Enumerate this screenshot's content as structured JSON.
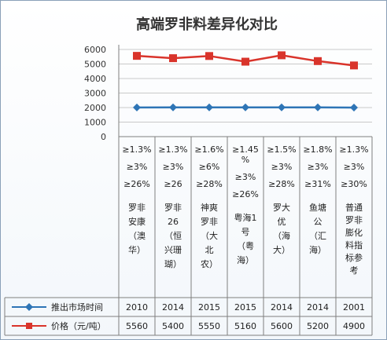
{
  "chart_data": {
    "type": "line",
    "title": "高端罗非料差异化对比",
    "ylim": [
      0,
      6000
    ],
    "yticks": [
      0,
      1000,
      2000,
      3000,
      4000,
      5000,
      6000
    ],
    "grid": true,
    "categories": [
      [
        "≥1.3%",
        "≥3%",
        "≥26%",
        "罗非",
        "安康",
        "（澳",
        "华）"
      ],
      [
        "≥1.3%",
        "≥3%",
        "≥26",
        "罗非",
        "26",
        "（恒",
        "兴珊",
        "瑚）"
      ],
      [
        "≥1.6%",
        "≥6%",
        "≥28%",
        "神爽",
        "罗非",
        "（大",
        "北",
        "农）"
      ],
      [
        "≥1.45",
        "%",
        "≥3%",
        "≥26%",
        "粤海1",
        "号",
        "（粤",
        "海）"
      ],
      [
        "≥1.5%",
        "≥3%",
        "≥28%",
        "罗大",
        "优",
        "（海",
        "大）"
      ],
      [
        "≥1.8%",
        "≥3%",
        "≥31%",
        "鱼塘",
        "公",
        "（汇",
        "海）"
      ],
      [
        "≥1.3%",
        "≥3%",
        "≥30%",
        "普通",
        "罗非",
        "膨化",
        "料指",
        "标参",
        "考"
      ]
    ],
    "series": [
      {
        "name": "推出市场时间",
        "values": [
          2010,
          2014,
          2015,
          2015,
          2014,
          2014,
          2001
        ],
        "color": "#2e75b6",
        "marker": "diamond"
      },
      {
        "name": "价格（元/吨）",
        "values": [
          5560,
          5400,
          5550,
          5160,
          5600,
          5200,
          4900
        ],
        "color": "#d9342b",
        "marker": "square"
      }
    ]
  }
}
